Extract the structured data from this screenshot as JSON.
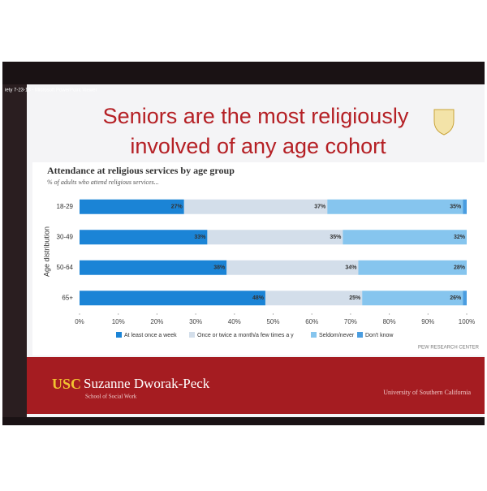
{
  "window_title": "iety 7-23-18 - Microsoft PowerPoint Viewer",
  "slide_title": [
    "Seniors are the most religiously",
    "involved of any age cohort"
  ],
  "footer": {
    "brand": "USC",
    "school": "Suzanne Dworak-Peck",
    "school_sub": "School of Social Work",
    "university": "University of Southern California"
  },
  "chart_data": {
    "type": "stacked-bar-horizontal",
    "title": "Attendance at religious services by age group",
    "subtitle": "% of adults who attend religious services...",
    "y_label": "Age distribution",
    "source": "PEW RESEARCH CENTER",
    "categories": [
      "18-29",
      "30-49",
      "50-64",
      "65+"
    ],
    "series": [
      {
        "name": "At least once a week",
        "color": "#1b84d6",
        "values": [
          27,
          33,
          38,
          48
        ],
        "value_labels": [
          "27%",
          "33%",
          "38%",
          "48%"
        ]
      },
      {
        "name": "Once or twice a month/a few times a y",
        "color": "#d3deea",
        "values": [
          37,
          35,
          34,
          25
        ],
        "value_labels": [
          "37%",
          "35%",
          "34%",
          "25%"
        ]
      },
      {
        "name": "Seldom/never",
        "color": "#86c5ee",
        "values": [
          35,
          32,
          28,
          26
        ],
        "value_labels": [
          "35%",
          "32%",
          "28%",
          "26%"
        ]
      },
      {
        "name": "Don't know",
        "color": "#4a9de0",
        "values": [
          1,
          0,
          0,
          1
        ]
      }
    ],
    "xlim": [
      0,
      100
    ],
    "xticks": [
      {
        "value": 0,
        "label": "0%"
      },
      {
        "value": 10,
        "label": "10%"
      },
      {
        "value": 20,
        "label": "20%"
      },
      {
        "value": 30,
        "label": "30%"
      },
      {
        "value": 40,
        "label": "40%"
      },
      {
        "value": 50,
        "label": "50%"
      },
      {
        "value": 60,
        "label": "60%"
      },
      {
        "value": 70,
        "label": "70%"
      },
      {
        "value": 80,
        "label": "80%"
      },
      {
        "value": 90,
        "label": "90%"
      },
      {
        "value": 100,
        "label": "100%"
      }
    ],
    "legend": "bottom"
  }
}
